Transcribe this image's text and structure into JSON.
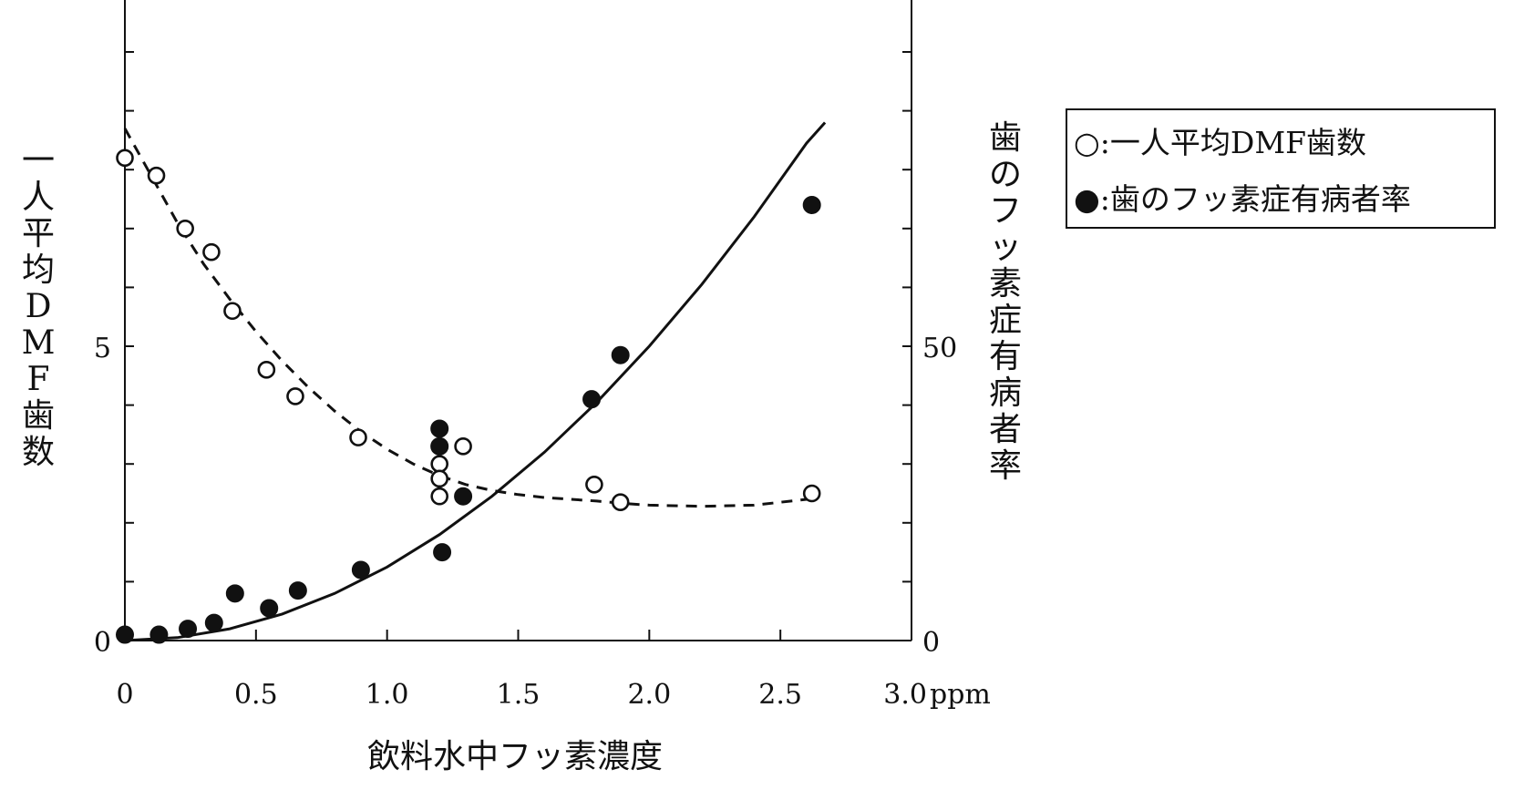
{
  "chart_data": {
    "type": "scatter",
    "x_axis": {
      "title": "飲料水中フッ素濃度",
      "range": [
        0,
        3.0
      ],
      "ticks": [
        0,
        0.5,
        1.0,
        1.5,
        2.0,
        2.5,
        3.0
      ],
      "tick_labels": [
        "0",
        "0.5",
        "1.0",
        "1.5",
        "2.0",
        "2.5",
        "3.0"
      ],
      "unit": "ppm"
    },
    "y_left": {
      "title": "一人平均DMF歯数",
      "title_chars": [
        "一",
        "人",
        "平",
        "均",
        "D",
        "M",
        "F",
        "歯",
        "数"
      ],
      "range": [
        0,
        10
      ],
      "labeled_ticks": [
        0,
        5
      ],
      "tick_labels": [
        "0",
        "5"
      ],
      "minor_ticks": [
        1,
        2,
        3,
        4,
        6,
        7,
        8,
        9,
        10
      ]
    },
    "y_right": {
      "title": "歯のフッ素症有病者率",
      "title_chars": [
        "歯",
        "の",
        "フ",
        "ッ",
        "素",
        "症",
        "有",
        "病",
        "者",
        "率"
      ],
      "range": [
        0,
        100
      ],
      "labeled_ticks": [
        0,
        50
      ],
      "tick_labels": [
        "0",
        "50"
      ],
      "minor_ticks": [
        10,
        20,
        30,
        40,
        60,
        70,
        80,
        90,
        100
      ]
    },
    "legend": {
      "placement": "right",
      "entries": [
        "○:一人平均DMF歯数",
        "●:歯のフッ素症有病者率"
      ]
    },
    "series": [
      {
        "name": "一人平均DMF歯数",
        "marker": "open-circle",
        "axis": "left",
        "x": [
          0,
          0.12,
          0.23,
          0.33,
          0.41,
          0.54,
          0.65,
          0.89,
          1.2,
          1.2,
          1.2,
          1.2,
          1.29,
          1.79,
          1.89,
          2.62
        ],
        "y": [
          8.2,
          7.9,
          7.0,
          6.6,
          5.6,
          4.6,
          4.15,
          3.45,
          3.0,
          2.75,
          2.45,
          3.3,
          3.3,
          2.65,
          2.35,
          2.5
        ]
      },
      {
        "name": "歯のフッ素症有病者率",
        "marker": "filled-circle",
        "axis": "right",
        "x": [
          0,
          0.13,
          0.24,
          0.34,
          0.42,
          0.55,
          0.66,
          0.9,
          1.2,
          1.2,
          1.21,
          1.29,
          1.78,
          1.89,
          2.62
        ],
        "y": [
          1,
          1,
          2,
          3,
          8,
          5.5,
          8.5,
          12,
          36,
          33,
          15,
          24.5,
          41,
          48.5,
          74
        ]
      }
    ],
    "fit_curves": [
      {
        "series": "一人平均DMF歯数",
        "style": "dashed",
        "axis": "left",
        "x": [
          0,
          0.1,
          0.2,
          0.3,
          0.4,
          0.5,
          0.6,
          0.7,
          0.8,
          0.9,
          1.0,
          1.1,
          1.2,
          1.3,
          1.4,
          1.5,
          1.6,
          1.7,
          1.8,
          1.9,
          2.0,
          2.2,
          2.4,
          2.6
        ],
        "y": [
          8.7,
          7.9,
          7.1,
          6.4,
          5.8,
          5.25,
          4.75,
          4.3,
          3.9,
          3.55,
          3.25,
          3.0,
          2.8,
          2.65,
          2.55,
          2.48,
          2.43,
          2.4,
          2.37,
          2.33,
          2.3,
          2.28,
          2.3,
          2.4
        ]
      },
      {
        "series": "歯のフッ素症有病者率",
        "style": "solid",
        "axis": "right",
        "x": [
          0,
          0.2,
          0.4,
          0.6,
          0.8,
          1.0,
          1.2,
          1.4,
          1.6,
          1.8,
          2.0,
          2.2,
          2.4,
          2.6,
          2.67
        ],
        "y": [
          0,
          0.5,
          2,
          4.5,
          8,
          12.5,
          18,
          24.5,
          32,
          40.5,
          50,
          60.5,
          72,
          84.5,
          88
        ]
      }
    ]
  }
}
